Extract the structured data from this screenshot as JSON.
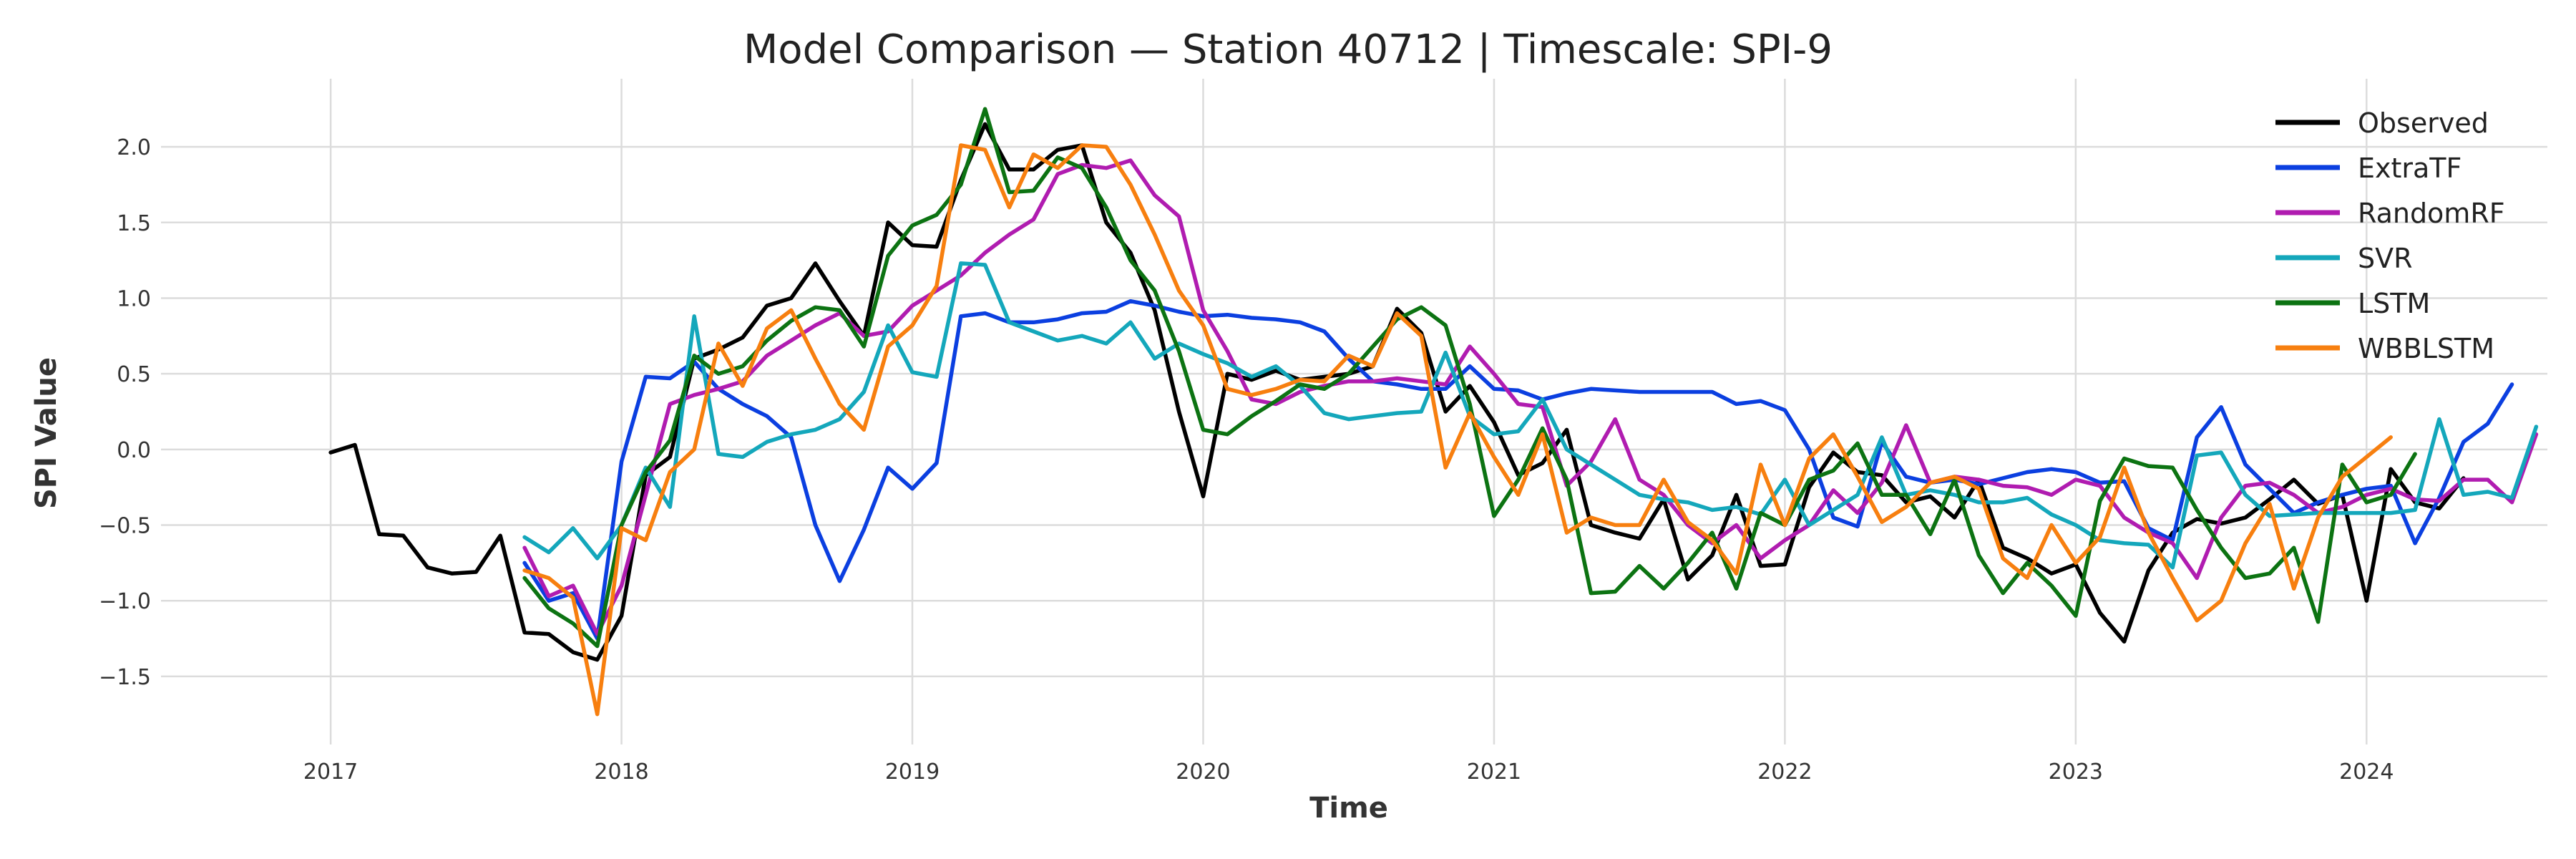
{
  "chart_data": {
    "type": "line",
    "title": "Model Comparison — Station 40712 | Timescale: SPI-9",
    "xlabel": "Time",
    "ylabel": "SPI Value",
    "xlim": [
      "2016-06-01",
      "2024-08-15"
    ],
    "ylim": [
      -1.95,
      2.45
    ],
    "x_ticks": [
      "2017",
      "2018",
      "2019",
      "2020",
      "2021",
      "2022",
      "2023",
      "2024"
    ],
    "y_ticks": [
      "2.0",
      "1.5",
      "1.0",
      "0.5",
      "0.0",
      "−0.5",
      "−1.0",
      "−1.5"
    ],
    "y_tick_values": [
      2.0,
      1.5,
      1.0,
      0.5,
      0.0,
      -0.5,
      -1.0,
      -1.5
    ],
    "grid": true,
    "legend_position": "top-right",
    "series": [
      {
        "name": "Observed",
        "color": "#000000",
        "start": "2017-01",
        "values": [
          -0.02,
          0.03,
          -0.56,
          -0.57,
          -0.78,
          -0.82,
          -0.81,
          -0.57,
          -1.21,
          -1.22,
          -1.34,
          -1.39,
          -1.1,
          -0.17,
          -0.05,
          0.6,
          0.66,
          0.74,
          0.95,
          1.0,
          1.23,
          0.98,
          0.75,
          1.5,
          1.35,
          1.34,
          1.78,
          2.15,
          1.85,
          1.85,
          1.98,
          2.01,
          1.5,
          1.3,
          0.92,
          0.25,
          -0.31,
          0.5,
          0.46,
          0.52,
          0.46,
          0.48,
          0.5,
          0.55,
          0.93,
          0.77,
          0.25,
          0.42,
          0.18,
          -0.17,
          -0.09,
          0.13,
          -0.5,
          -0.55,
          -0.59,
          -0.33,
          -0.86,
          -0.7,
          -0.3,
          -0.77,
          -0.76,
          -0.25,
          -0.02,
          -0.15,
          -0.17,
          -0.35,
          -0.31,
          -0.45,
          -0.2,
          -0.65,
          -0.72,
          -0.82,
          -0.76,
          -1.08,
          -1.27,
          -0.8,
          -0.55,
          -0.46,
          -0.49,
          -0.45,
          -0.33,
          -0.2,
          -0.36,
          -0.3,
          -1.0,
          -0.13,
          -0.35,
          -0.39,
          -0.19
        ]
      },
      {
        "name": "ExtraTF",
        "color": "#0b3fe0",
        "start": "2017-09",
        "values": [
          -0.75,
          -1.0,
          -0.95,
          -1.25,
          -0.08,
          0.48,
          0.47,
          0.58,
          0.4,
          0.3,
          0.22,
          0.08,
          -0.5,
          -0.87,
          -0.53,
          -0.12,
          -0.26,
          -0.09,
          0.88,
          0.9,
          0.84,
          0.84,
          0.86,
          0.9,
          0.91,
          0.98,
          0.95,
          0.91,
          0.88,
          0.89,
          0.87,
          0.86,
          0.84,
          0.78,
          0.6,
          0.45,
          0.43,
          0.4,
          0.4,
          0.55,
          0.4,
          0.39,
          0.33,
          0.37,
          0.4,
          0.39,
          0.38,
          0.38,
          0.38,
          0.38,
          0.3,
          0.32,
          0.26,
          0.0,
          -0.45,
          -0.51,
          0.05,
          -0.18,
          -0.22,
          -0.2,
          -0.23,
          -0.19,
          -0.15,
          -0.13,
          -0.15,
          -0.22,
          -0.21,
          -0.52,
          -0.6,
          0.08,
          0.28,
          -0.1,
          -0.26,
          -0.42,
          -0.35,
          -0.3,
          -0.26,
          -0.24,
          -0.62,
          -0.32,
          0.05,
          0.17,
          0.43
        ]
      },
      {
        "name": "RandomRF",
        "color": "#b01cb0",
        "start": "2017-09",
        "values": [
          -0.65,
          -0.97,
          -0.9,
          -1.22,
          -0.9,
          -0.3,
          0.3,
          0.36,
          0.4,
          0.45,
          0.62,
          0.72,
          0.82,
          0.9,
          0.75,
          0.78,
          0.95,
          1.05,
          1.15,
          1.3,
          1.42,
          1.52,
          1.82,
          1.88,
          1.86,
          1.91,
          1.68,
          1.54,
          0.92,
          0.65,
          0.33,
          0.3,
          0.38,
          0.42,
          0.45,
          0.45,
          0.47,
          0.45,
          0.43,
          0.68,
          0.5,
          0.3,
          0.28,
          -0.24,
          -0.08,
          0.2,
          -0.2,
          -0.3,
          -0.5,
          -0.62,
          -0.5,
          -0.72,
          -0.6,
          -0.5,
          -0.27,
          -0.42,
          -0.22,
          0.16,
          -0.22,
          -0.18,
          -0.2,
          -0.24,
          -0.25,
          -0.3,
          -0.2,
          -0.24,
          -0.45,
          -0.55,
          -0.62,
          -0.85,
          -0.45,
          -0.24,
          -0.22,
          -0.3,
          -0.42,
          -0.38,
          -0.3,
          -0.26,
          -0.33,
          -0.34,
          -0.2,
          -0.2,
          -0.35,
          0.1
        ]
      },
      {
        "name": "SVR",
        "color": "#14a7bb",
        "start": "2017-09",
        "values": [
          -0.58,
          -0.68,
          -0.52,
          -0.72,
          -0.5,
          -0.12,
          -0.38,
          0.88,
          -0.03,
          -0.05,
          0.05,
          0.1,
          0.13,
          0.2,
          0.38,
          0.82,
          0.51,
          0.48,
          1.23,
          1.22,
          0.84,
          0.78,
          0.72,
          0.75,
          0.7,
          0.84,
          0.6,
          0.7,
          0.63,
          0.57,
          0.48,
          0.55,
          0.42,
          0.24,
          0.2,
          0.22,
          0.24,
          0.25,
          0.64,
          0.22,
          0.1,
          0.12,
          0.33,
          0.0,
          -0.1,
          -0.2,
          -0.3,
          -0.33,
          -0.35,
          -0.4,
          -0.38,
          -0.43,
          -0.2,
          -0.5,
          -0.4,
          -0.3,
          0.08,
          -0.3,
          -0.27,
          -0.3,
          -0.35,
          -0.35,
          -0.32,
          -0.43,
          -0.5,
          -0.6,
          -0.62,
          -0.63,
          -0.78,
          -0.04,
          -0.02,
          -0.3,
          -0.44,
          -0.43,
          -0.42,
          -0.42,
          -0.42,
          -0.42,
          -0.4,
          0.2,
          -0.3,
          -0.28,
          -0.32,
          0.15
        ]
      },
      {
        "name": "LSTM",
        "color": "#0c7312",
        "start": "2017-09",
        "values": [
          -0.85,
          -1.05,
          -1.15,
          -1.3,
          -0.5,
          -0.15,
          0.06,
          0.62,
          0.5,
          0.55,
          0.72,
          0.85,
          0.94,
          0.92,
          0.68,
          1.28,
          1.48,
          1.55,
          1.75,
          2.25,
          1.7,
          1.71,
          1.93,
          1.86,
          1.6,
          1.25,
          1.05,
          0.65,
          0.13,
          0.1,
          0.22,
          0.32,
          0.43,
          0.4,
          0.5,
          0.68,
          0.86,
          0.94,
          0.82,
          0.3,
          -0.44,
          -0.2,
          0.14,
          -0.2,
          -0.95,
          -0.94,
          -0.77,
          -0.92,
          -0.75,
          -0.55,
          -0.92,
          -0.42,
          -0.5,
          -0.2,
          -0.14,
          0.04,
          -0.3,
          -0.3,
          -0.56,
          -0.2,
          -0.7,
          -0.95,
          -0.75,
          -0.9,
          -1.1,
          -0.34,
          -0.06,
          -0.11,
          -0.12,
          -0.4,
          -0.65,
          -0.85,
          -0.82,
          -0.65,
          -1.14,
          -0.1,
          -0.35,
          -0.3,
          -0.03
        ]
      },
      {
        "name": "WBBLSTM",
        "color": "#f77f0f",
        "start": "2017-09",
        "values": [
          -0.8,
          -0.85,
          -0.98,
          -1.75,
          -0.52,
          -0.6,
          -0.15,
          0.0,
          0.7,
          0.42,
          0.8,
          0.92,
          0.6,
          0.3,
          0.13,
          0.68,
          0.82,
          1.08,
          2.01,
          1.98,
          1.6,
          1.95,
          1.86,
          2.01,
          2.0,
          1.75,
          1.42,
          1.05,
          0.82,
          0.4,
          0.36,
          0.4,
          0.46,
          0.45,
          0.62,
          0.55,
          0.9,
          0.75,
          -0.12,
          0.24,
          -0.05,
          -0.3,
          0.1,
          -0.55,
          -0.45,
          -0.5,
          -0.5,
          -0.2,
          -0.48,
          -0.6,
          -0.82,
          -0.1,
          -0.5,
          -0.06,
          0.1,
          -0.18,
          -0.48,
          -0.38,
          -0.22,
          -0.18,
          -0.26,
          -0.72,
          -0.85,
          -0.5,
          -0.75,
          -0.58,
          -0.12,
          -0.55,
          -0.85,
          -1.13,
          -1.0,
          -0.62,
          -0.36,
          -0.92,
          -0.45,
          -0.18,
          -0.05,
          0.08
        ]
      }
    ]
  }
}
